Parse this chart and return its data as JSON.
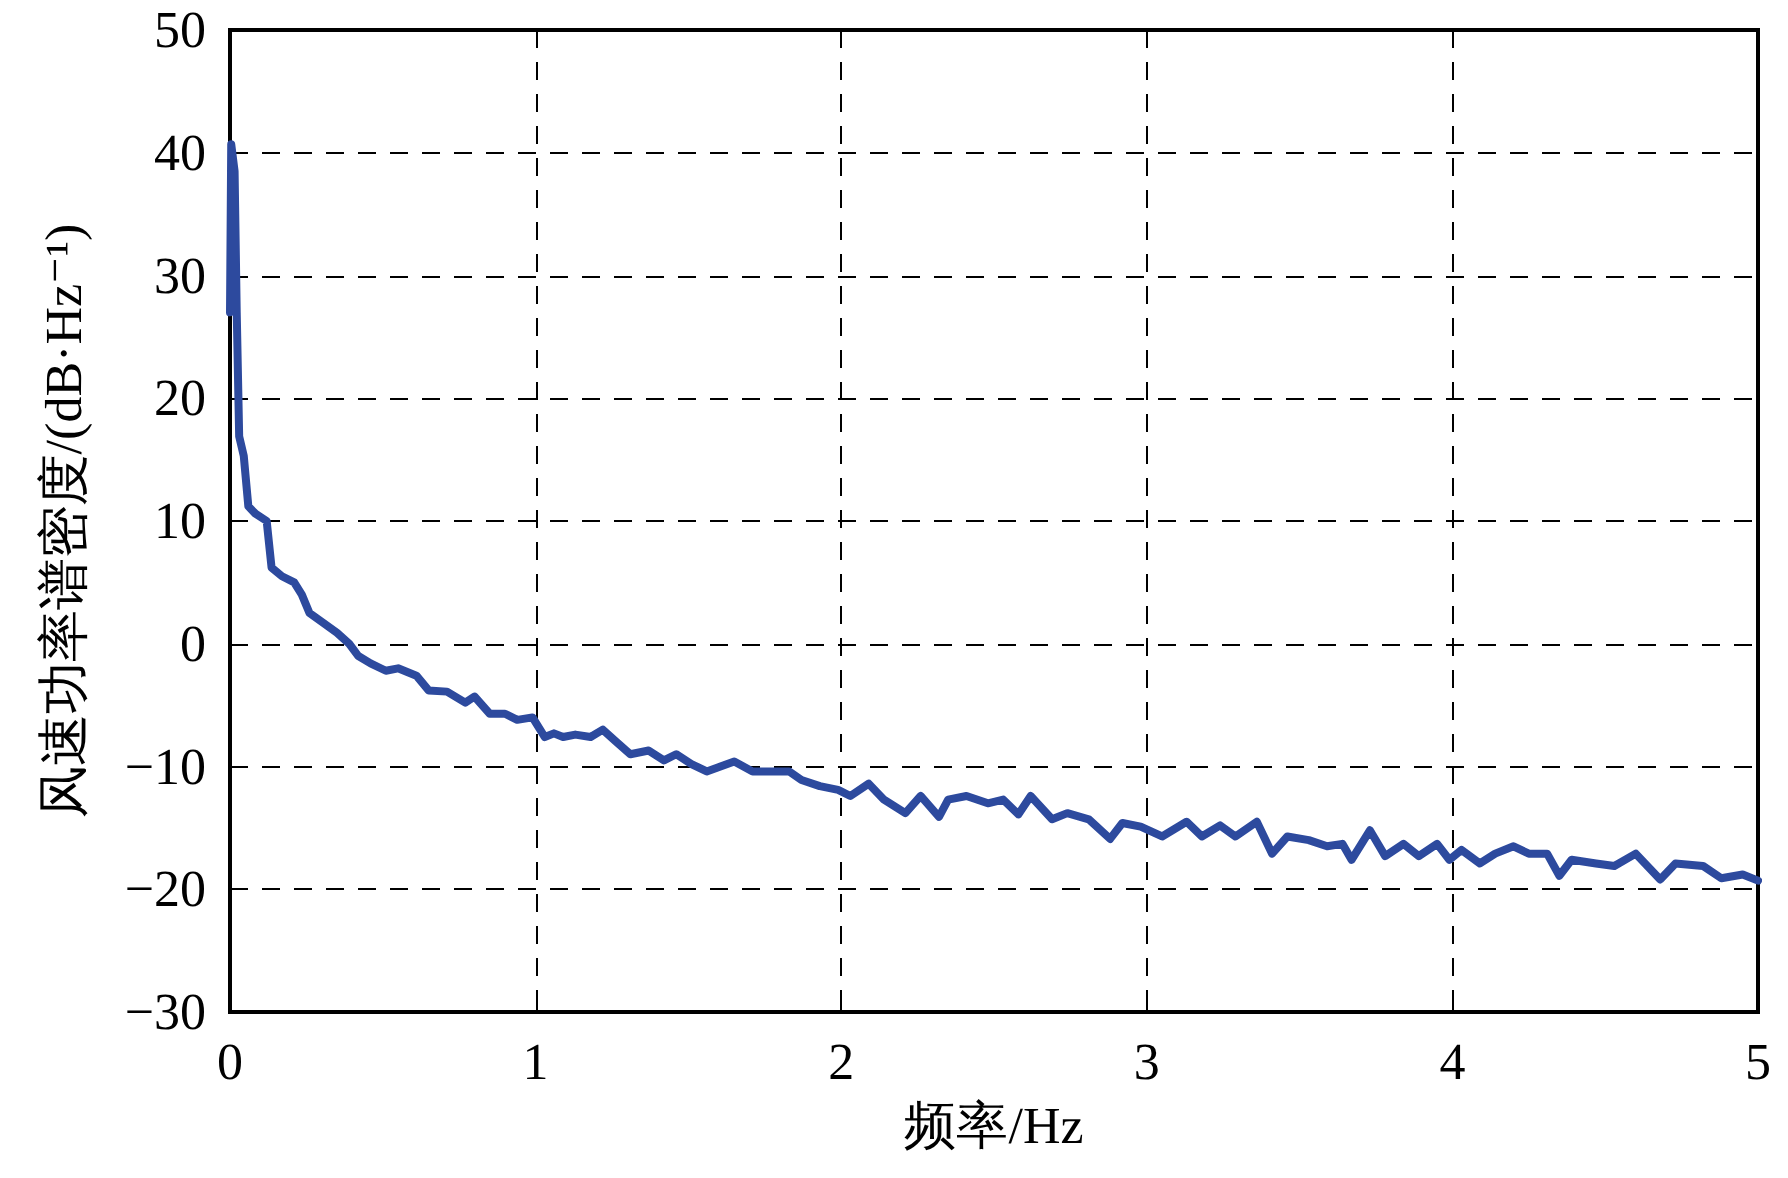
{
  "chart_data": {
    "type": "line",
    "xlabel": "频率/Hz",
    "ylabel": "风速功率谱密度/(dB·Hz⁻¹)",
    "xlim": [
      0,
      5
    ],
    "xticks": [
      0,
      1,
      2,
      3,
      4,
      5
    ],
    "ylim": [
      -30,
      50
    ],
    "yticks": [
      -30,
      -20,
      -10,
      0,
      10,
      20,
      30,
      40,
      50
    ],
    "grid": true,
    "marker": "none",
    "line_style": "solid",
    "x": [
      0,
      0.004,
      0.015,
      0.022,
      0.03,
      0.045,
      0.06,
      0.083,
      0.12,
      0.136,
      0.17,
      0.21,
      0.235,
      0.26,
      0.3,
      0.35,
      0.39,
      0.42,
      0.46,
      0.51,
      0.55,
      0.61,
      0.65,
      0.71,
      0.77,
      0.8,
      0.85,
      0.9,
      0.94,
      0.99,
      1.03,
      1.06,
      1.09,
      1.13,
      1.18,
      1.22,
      1.26,
      1.31,
      1.37,
      1.42,
      1.46,
      1.51,
      1.56,
      1.65,
      1.71,
      1.83,
      1.87,
      1.93,
      1.99,
      2.03,
      2.09,
      2.14,
      2.21,
      2.26,
      2.32,
      2.35,
      2.41,
      2.48,
      2.53,
      2.58,
      2.62,
      2.69,
      2.74,
      2.81,
      2.88,
      2.92,
      2.98,
      3.05,
      3.13,
      3.18,
      3.24,
      3.29,
      3.36,
      3.41,
      3.46,
      3.53,
      3.59,
      3.64,
      3.67,
      3.73,
      3.78,
      3.84,
      3.89,
      3.95,
      3.99,
      4.03,
      4.09,
      4.14,
      4.2,
      4.25,
      4.31,
      4.35,
      4.39,
      4.47,
      4.53,
      4.6,
      4.68,
      4.73,
      4.82,
      4.88,
      4.95,
      5
    ],
    "series": [
      {
        "color": "#2d4a9e",
        "values": [
          27,
          40.7,
          38.5,
          27,
          16.9,
          15.3,
          11.2,
          10.6,
          10,
          6.2,
          5.5,
          5,
          4,
          2.5,
          1.8,
          0.9,
          0,
          -1,
          -1.6,
          -2.2,
          -2,
          -2.6,
          -3.8,
          -3.9,
          -4.8,
          -4.3,
          -5.7,
          -5.7,
          -6.2,
          -6,
          -7.6,
          -7.3,
          -7.6,
          -7.4,
          -7.6,
          -7,
          -7.9,
          -9,
          -8.7,
          -9.5,
          -9,
          -9.8,
          -10.4,
          -9.6,
          -10.4,
          -10.4,
          -11.1,
          -11.6,
          -11.9,
          -12.4,
          -11.4,
          -12.7,
          -13.8,
          -12.4,
          -14.1,
          -12.7,
          -12.4,
          -13,
          -12.7,
          -13.9,
          -12.4,
          -14.3,
          -13.8,
          -14.3,
          -15.9,
          -14.6,
          -14.9,
          -15.7,
          -14.5,
          -15.7,
          -14.8,
          -15.7,
          -14.5,
          -17.1,
          -15.7,
          -16,
          -16.5,
          -16.3,
          -17.6,
          -15.2,
          -17.3,
          -16.3,
          -17.3,
          -16.3,
          -17.6,
          -16.8,
          -17.9,
          -17.1,
          -16.5,
          -17.1,
          -17.1,
          -18.9,
          -17.6,
          -17.9,
          -18.1,
          -17.1,
          -19.2,
          -17.9,
          -18.1,
          -19.1,
          -18.8,
          -19.3
        ]
      }
    ]
  }
}
